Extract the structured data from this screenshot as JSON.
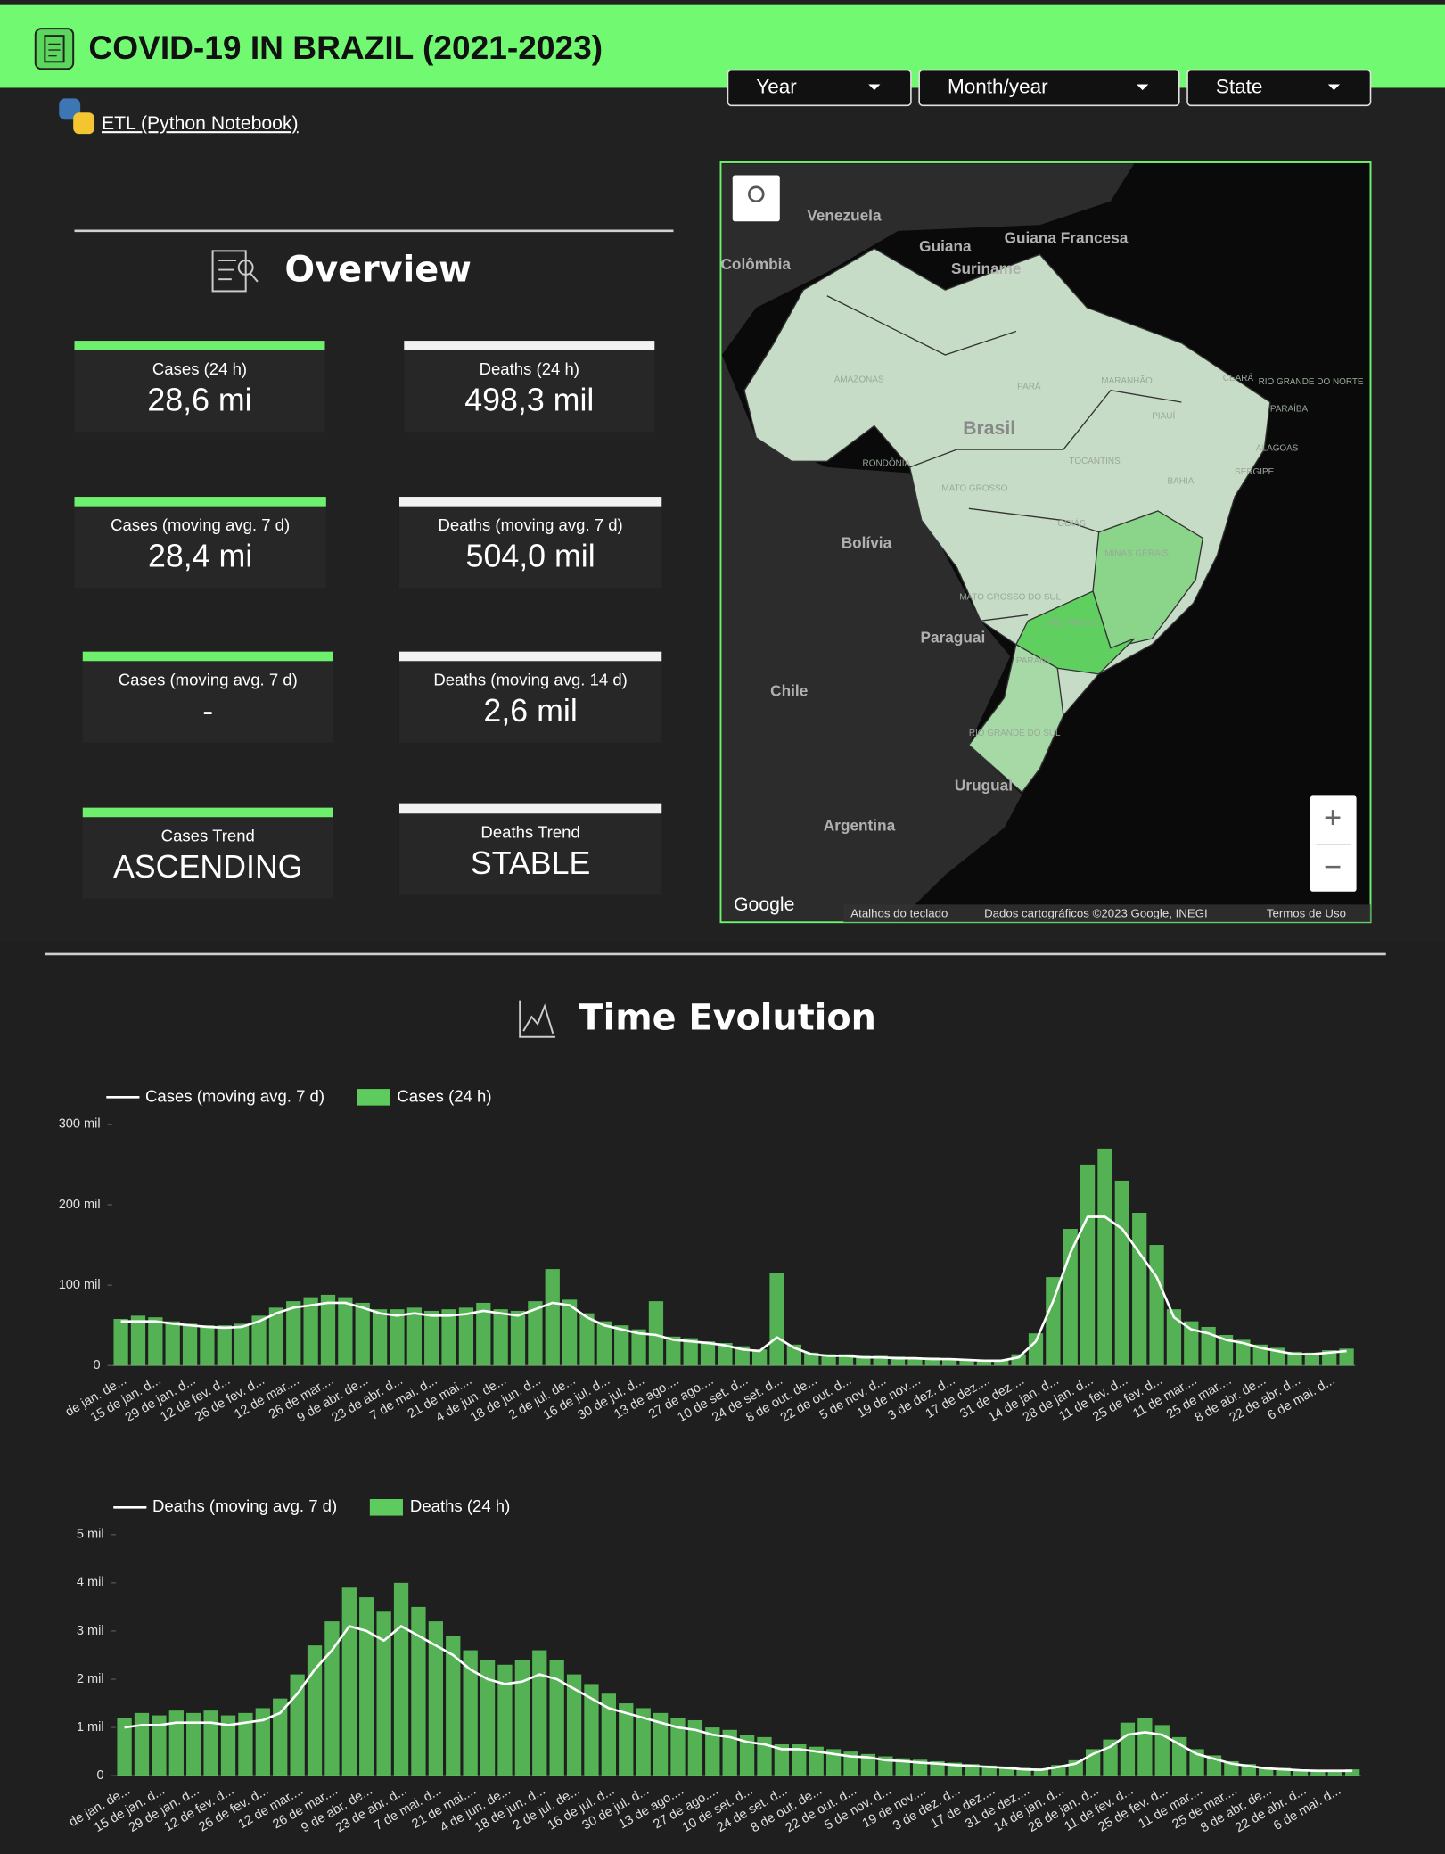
{
  "header": {
    "title": "COVID-19 IN BRAZIL (2021-2023)",
    "link": "ETL (Python Notebook)"
  },
  "filters": [
    "Year",
    "Month/year",
    "State"
  ],
  "overview": {
    "title": "Overview",
    "cards": [
      {
        "label": "Cases (24 h)",
        "value": "28,6 mi"
      },
      {
        "label": "Deaths (24 h)",
        "value": "498,3 mil"
      },
      {
        "label": "Cases (moving avg. 7 d)",
        "value": "28,4 mi"
      },
      {
        "label": "Deaths (moving avg. 7 d)",
        "value": "504,0 mil"
      },
      {
        "label": "Cases (moving avg. 7 d)",
        "value": "-"
      },
      {
        "label": "Deaths (moving avg. 14 d)",
        "value": "2,6 mil"
      },
      {
        "label": "Cases Trend",
        "value": "ASCENDING"
      },
      {
        "label": "Deaths Trend",
        "value": "STABLE"
      }
    ]
  },
  "map": {
    "countries": [
      "Venezuela",
      "Guiana",
      "Guiana Francesa",
      "Suriname",
      "Colômbia",
      "Brasil",
      "Bolívia",
      "Paraguai",
      "Chile",
      "Urugual",
      "Argentina"
    ],
    "states": [
      "AMAZONAS",
      "PARÁ",
      "MARANHÃO",
      "PIAUÍ",
      "CEARÁ",
      "RIO GRANDE DO NORTE",
      "PARAÍBA",
      "ALAGOAS",
      "SERGIPE",
      "BAHIA",
      "TOCANTINS",
      "RONDÔNIA",
      "MATO GROSSO",
      "GOIÁS",
      "MINAS GERAIS",
      "MATO GROSSO DO SUL",
      "SÃO PAULO",
      "PARANÁ",
      "RIO GRANDE DO SUL"
    ],
    "logo": "Google",
    "credits": [
      "Atalhos do teclado",
      "Dados cartográficos ©2023 Google, INEGI",
      "Termos de Uso"
    ],
    "zoom": [
      "+",
      "−"
    ]
  },
  "section_title": "Time Evolution",
  "chart_data": [
    {
      "type": "combo",
      "categories": [
        "de jan. de...",
        null,
        "15 de jan. d...",
        null,
        "29 de jan. d...",
        null,
        "12 de fev. d...",
        null,
        "26 de fev. d...",
        null,
        "12 de mar....",
        null,
        "26 de mar....",
        null,
        "9 de abr. de...",
        null,
        "23 de abr. d...",
        null,
        "7 de mai. d...",
        null,
        "21 de mai....",
        null,
        "4 de jun. de...",
        null,
        "18 de jun. d...",
        null,
        "2 de jul. de...",
        null,
        "16 de jul. d...",
        null,
        "30 de jul. d...",
        null,
        "13 de ago....",
        null,
        "27 de ago....",
        null,
        "10 de set. d...",
        null,
        "24 de set. d...",
        null,
        "8 de out. de...",
        null,
        "22 de out. d...",
        null,
        "5 de nov. d...",
        null,
        "19 de nov....",
        null,
        "3 de dez. d...",
        null,
        "17 de dez....",
        null,
        "31 de dez....",
        null,
        "14 de jan. d...",
        null,
        "28 de jan. d...",
        null,
        "11 de fev. d...",
        null,
        "25 de fev. d...",
        null,
        "11 de mar....",
        null,
        "25 de mar....",
        null,
        "8 de abr. de...",
        null,
        "22 de abr. d...",
        null,
        "6 de mai. d...",
        null
      ],
      "series": [
        {
          "name": "Cases (moving avg. 7 d)",
          "type": "line",
          "color": "#ffffff",
          "values": [
            55000,
            55000,
            55000,
            52000,
            50000,
            48000,
            47000,
            48000,
            55000,
            65000,
            72000,
            75000,
            78000,
            78000,
            72000,
            65000,
            62000,
            65000,
            62000,
            62000,
            64000,
            68000,
            65000,
            62000,
            70000,
            78000,
            75000,
            60000,
            50000,
            45000,
            40000,
            38000,
            32000,
            30000,
            28000,
            25000,
            20000,
            18000,
            35000,
            22000,
            14000,
            12000,
            12000,
            10000,
            10000,
            9000,
            9000,
            8000,
            8000,
            7000,
            6000,
            6000,
            10000,
            30000,
            80000,
            140000,
            185000,
            185000,
            170000,
            140000,
            110000,
            60000,
            45000,
            40000,
            32000,
            28000,
            22000,
            18000,
            14000,
            14000,
            16000,
            18000
          ]
        },
        {
          "name": "Cases (24 h)",
          "type": "bar",
          "color": "#5ecb5e",
          "values": [
            58000,
            62000,
            60000,
            55000,
            52000,
            50000,
            50000,
            52000,
            62000,
            72000,
            80000,
            85000,
            88000,
            85000,
            78000,
            70000,
            70000,
            72000,
            68000,
            70000,
            72000,
            78000,
            70000,
            68000,
            80000,
            120000,
            82000,
            65000,
            55000,
            50000,
            45000,
            80000,
            36000,
            34000,
            30000,
            28000,
            24000,
            20000,
            115000,
            26000,
            16000,
            14000,
            14000,
            12000,
            12000,
            11000,
            10000,
            10000,
            9000,
            8000,
            7000,
            7000,
            14000,
            40000,
            110000,
            170000,
            250000,
            270000,
            230000,
            190000,
            150000,
            70000,
            55000,
            48000,
            38000,
            32000,
            26000,
            22000,
            17000,
            16000,
            19000,
            21000
          ]
        }
      ],
      "ylim": [
        0,
        300000
      ],
      "yticks": [
        0,
        {
          "value": 100000,
          "label": "100 mil"
        },
        {
          "value": 200000,
          "label": "200 mil"
        },
        {
          "value": 300000,
          "label": "300 mil"
        }
      ],
      "grid": false
    },
    {
      "type": "combo",
      "categories": [
        "de jan. de...",
        null,
        "15 de jan. d...",
        null,
        "29 de jan. d...",
        null,
        "12 de fev. d...",
        null,
        "26 de fev. d...",
        null,
        "12 de mar....",
        null,
        "26 de mar....",
        null,
        "9 de abr. de...",
        null,
        "23 de abr. d...",
        null,
        "7 de mai. d...",
        null,
        "21 de mai....",
        null,
        "4 de jun. de...",
        null,
        "18 de jun. d...",
        null,
        "2 de jul. de...",
        null,
        "16 de jul. d...",
        null,
        "30 de jul. d...",
        null,
        "13 de ago....",
        null,
        "27 de ago....",
        null,
        "10 de set. d...",
        null,
        "24 de set. d...",
        null,
        "8 de out. de...",
        null,
        "22 de out. d...",
        null,
        "5 de nov. d...",
        null,
        "19 de nov....",
        null,
        "3 de dez. d...",
        null,
        "17 de dez....",
        null,
        "31 de dez....",
        null,
        "14 de jan. d...",
        null,
        "28 de jan. d...",
        null,
        "11 de fev. d...",
        null,
        "25 de fev. d...",
        null,
        "11 de mar....",
        null,
        "25 de mar....",
        null,
        "8 de abr. de...",
        null,
        "22 de abr. d...",
        null,
        "6 de mai. d...",
        null
      ],
      "series": [
        {
          "name": "Deaths (moving avg. 7 d)",
          "type": "line",
          "color": "#ffffff",
          "values": [
            1000,
            1050,
            1050,
            1100,
            1100,
            1100,
            1050,
            1100,
            1150,
            1300,
            1700,
            2200,
            2600,
            3100,
            3000,
            2800,
            3100,
            2900,
            2700,
            2500,
            2200,
            2000,
            1900,
            1950,
            2100,
            2000,
            1800,
            1600,
            1400,
            1300,
            1200,
            1100,
            1000,
            950,
            850,
            800,
            700,
            650,
            550,
            550,
            500,
            450,
            400,
            380,
            320,
            300,
            270,
            250,
            220,
            200,
            180,
            160,
            130,
            120,
            180,
            250,
            450,
            600,
            850,
            900,
            850,
            650,
            450,
            350,
            250,
            200,
            150,
            130,
            110,
            100,
            100,
            100
          ]
        },
        {
          "name": "Deaths (24 h)",
          "type": "bar",
          "color": "#5ecb5e",
          "values": [
            1200,
            1300,
            1250,
            1350,
            1300,
            1350,
            1250,
            1300,
            1400,
            1600,
            2100,
            2700,
            3200,
            3900,
            3700,
            3400,
            4000,
            3500,
            3200,
            2900,
            2600,
            2400,
            2300,
            2400,
            2600,
            2400,
            2100,
            1900,
            1700,
            1500,
            1400,
            1300,
            1200,
            1150,
            1000,
            950,
            850,
            800,
            650,
            650,
            600,
            550,
            500,
            450,
            400,
            360,
            330,
            300,
            270,
            240,
            210,
            190,
            160,
            150,
            220,
            320,
            550,
            750,
            1100,
            1200,
            1050,
            800,
            550,
            420,
            300,
            240,
            180,
            160,
            130,
            120,
            120,
            130
          ]
        }
      ],
      "ylim": [
        0,
        5000
      ],
      "yticks": [
        0,
        {
          "value": 1000,
          "label": "1 mil"
        },
        {
          "value": 2000,
          "label": "2 mil"
        },
        {
          "value": 3000,
          "label": "3 mil"
        },
        {
          "value": 4000,
          "label": "4 mil"
        },
        {
          "value": 5000,
          "label": "5 mil"
        }
      ],
      "grid": false
    }
  ]
}
